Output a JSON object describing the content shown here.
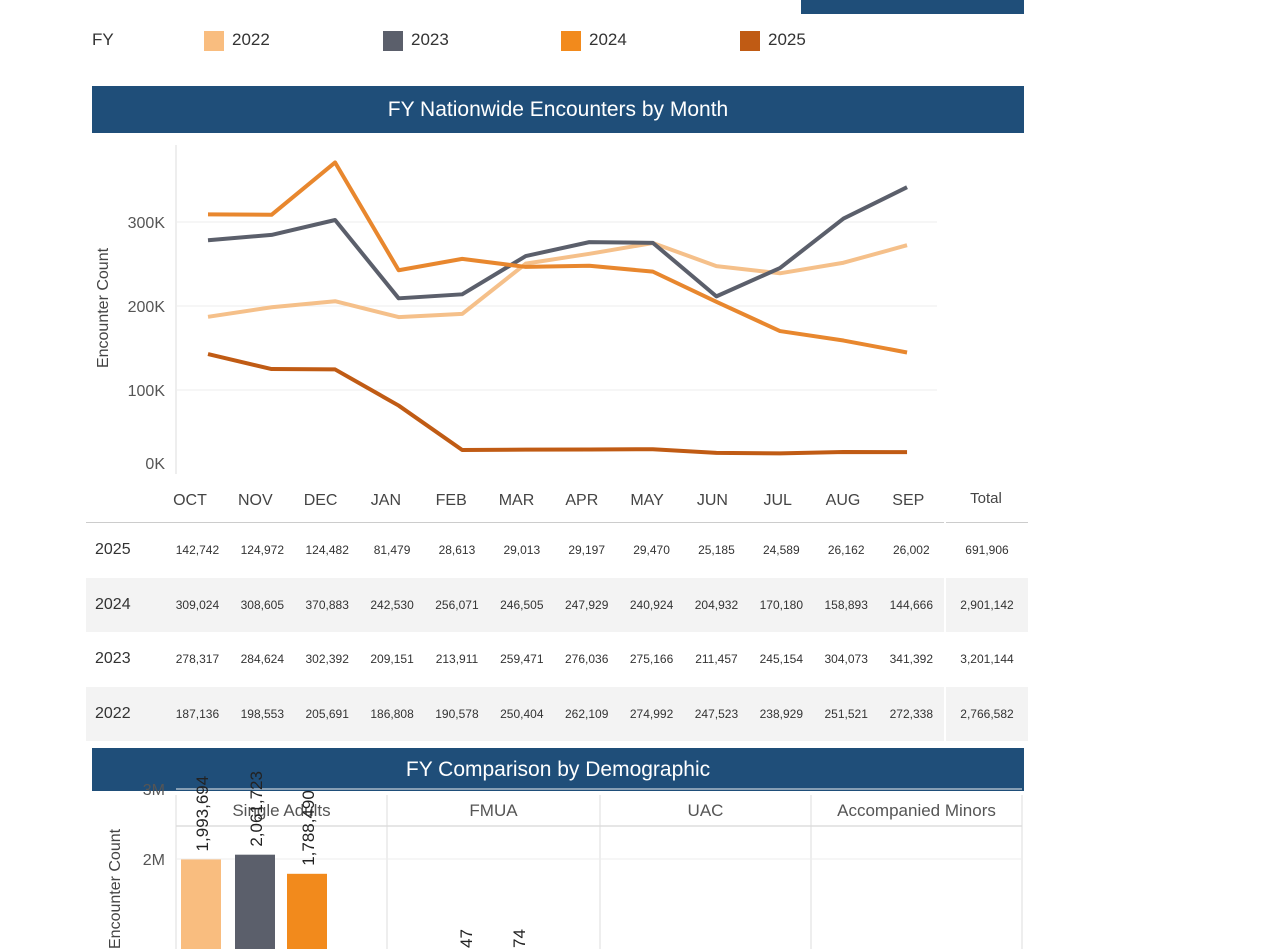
{
  "legend": {
    "title": "FY",
    "items": [
      {
        "label": "2022",
        "color": "#F9BD7F"
      },
      {
        "label": "2023",
        "color": "#5B5F6B"
      },
      {
        "label": "2024",
        "color": "#F28A1C"
      },
      {
        "label": "2025",
        "color": "#C05B14"
      }
    ]
  },
  "chart_data": [
    {
      "type": "line",
      "title": "FY Nationwide Encounters by Month",
      "ylabel": "Encounter Count",
      "ylim": [
        0,
        400000
      ],
      "yticks": [
        "0K",
        "100K",
        "200K",
        "300K"
      ],
      "categories": [
        "OCT",
        "NOV",
        "DEC",
        "JAN",
        "FEB",
        "MAR",
        "APR",
        "MAY",
        "JUN",
        "JUL",
        "AUG",
        "SEP"
      ],
      "grid": true,
      "series": [
        {
          "name": "2025",
          "color": "#C05B14",
          "values": [
            142742,
            124972,
            124482,
            81479,
            28613,
            29013,
            29197,
            29470,
            25185,
            24589,
            26162,
            26002
          ],
          "total": "691,906"
        },
        {
          "name": "2024",
          "color": "#E8872E",
          "values": [
            309024,
            308605,
            370883,
            242530,
            256071,
            246505,
            247929,
            240924,
            204932,
            170180,
            158893,
            144666
          ],
          "total": "2,901,142"
        },
        {
          "name": "2023",
          "color": "#5B5F6B",
          "values": [
            278317,
            284624,
            302392,
            209151,
            213911,
            259471,
            276036,
            275166,
            211457,
            245154,
            304073,
            341392
          ],
          "total": "3,201,144"
        },
        {
          "name": "2022",
          "color": "#F5C08A",
          "values": [
            187136,
            198553,
            205691,
            186808,
            190578,
            250404,
            262109,
            274992,
            247523,
            238929,
            251521,
            272338
          ],
          "total": "2,766,582"
        }
      ],
      "total_header": "Total"
    },
    {
      "type": "bar",
      "title": "FY Comparison by Demographic",
      "ylabel": "Encounter Count",
      "yticks": [
        "2M",
        "3M"
      ],
      "panels": [
        "Single Adults",
        "FMUA",
        "UAC",
        "Accompanied Minors"
      ],
      "series": [
        {
          "name": "2022",
          "color": "#F9BD7F",
          "values": [
            1993694
          ],
          "label": "1,993,694"
        },
        {
          "name": "2023",
          "color": "#5B5F6B",
          "values": [
            2061723
          ],
          "label": "2,061,723"
        },
        {
          "name": "2024",
          "color": "#F28A1C",
          "values": [
            1788490
          ],
          "label": "1,788,490"
        }
      ],
      "fmua_partial_labels": [
        "47",
        "74"
      ]
    }
  ]
}
